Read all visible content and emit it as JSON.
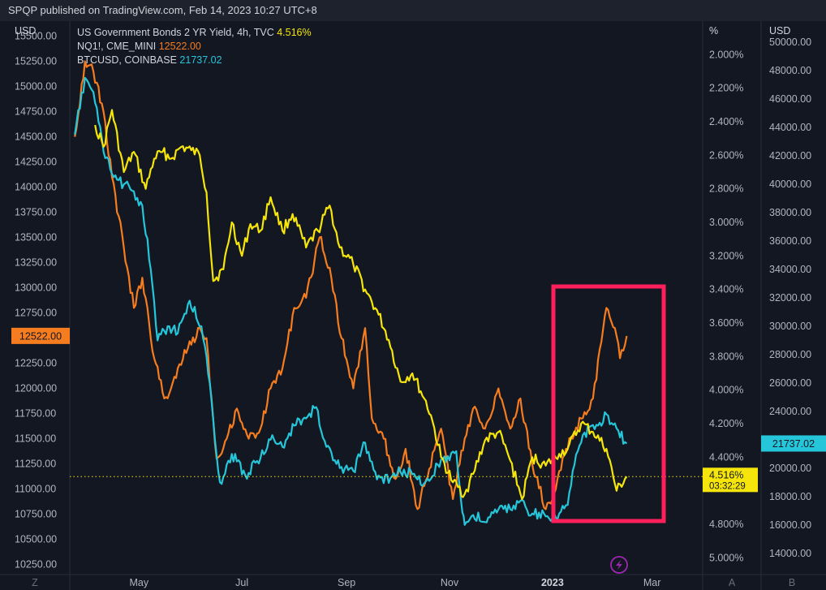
{
  "header": {
    "published": "SPQP published on TradingView.com, Feb 14, 2023 10:27 UTC+8"
  },
  "axes": {
    "left_unit": "USD",
    "mid_unit": "%",
    "right_unit": "USD",
    "left_ticks": [
      "15500.00",
      "15250.00",
      "15000.00",
      "14750.00",
      "14500.00",
      "14250.00",
      "14000.00",
      "13750.00",
      "13500.00",
      "13250.00",
      "13000.00",
      "12750.00",
      "12250.00",
      "12000.00",
      "11750.00",
      "11500.00",
      "11250.00",
      "11000.00",
      "10750.00",
      "10500.00",
      "10250.00"
    ],
    "mid_ticks": [
      "2.000%",
      "2.200%",
      "2.400%",
      "2.600%",
      "2.800%",
      "3.000%",
      "3.200%",
      "3.400%",
      "3.600%",
      "3.800%",
      "4.000%",
      "4.200%",
      "4.400%",
      "4.800%",
      "5.000%"
    ],
    "right_ticks": [
      "50000.00",
      "48000.00",
      "46000.00",
      "44000.00",
      "42000.00",
      "40000.00",
      "38000.00",
      "36000.00",
      "34000.00",
      "32000.00",
      "30000.00",
      "28000.00",
      "26000.00",
      "24000.00",
      "20000.00",
      "18000.00",
      "16000.00",
      "14000.00"
    ],
    "x_ticks": [
      "May",
      "Jul",
      "Sep",
      "Nov",
      "2023",
      "Mar"
    ],
    "left_corner": "Z",
    "right_corner_a": "A",
    "right_corner_b": "B"
  },
  "legend": [
    {
      "label": "US Government Bonds 2 YR Yield, 4h, TVC",
      "value": "4.516%",
      "color": "#f5e50a"
    },
    {
      "label": "NQ1!, CME_MINI",
      "value": "12522.00",
      "color": "#f57c1f"
    },
    {
      "label": "BTCUSD, COINBASE",
      "value": "21737.02",
      "color": "#26c6da"
    }
  ],
  "price_labels": {
    "nq": "12522.00",
    "btc": "21737.02",
    "yield": "4.516%",
    "countdown": "03:32:29"
  },
  "colors": {
    "yield": "#f5e50a",
    "nq": "#f57c1f",
    "btc": "#26c6da",
    "highlight_box": "#ff1f5a",
    "background": "#131722"
  },
  "icons": {
    "replay": "lightning-icon"
  },
  "chart_data": {
    "type": "line",
    "x_range": [
      "2022-03-21",
      "2023-03-31"
    ],
    "series": [
      {
        "name": "US Government Bonds 2 YR Yield, 4h, TVC",
        "axis": "mid",
        "unit": "%",
        "ylim": [
          1.8,
          5.1
        ],
        "points": [
          [
            "2022-04-05",
            2.42
          ],
          [
            "2022-04-10",
            2.55
          ],
          [
            "2022-04-15",
            2.33
          ],
          [
            "2022-04-22",
            2.7
          ],
          [
            "2022-04-28",
            2.58
          ],
          [
            "2022-05-05",
            2.8
          ],
          [
            "2022-05-10",
            2.62
          ],
          [
            "2022-05-15",
            2.58
          ],
          [
            "2022-05-20",
            2.62
          ],
          [
            "2022-05-26",
            2.55
          ],
          [
            "2022-06-01",
            2.57
          ],
          [
            "2022-06-06",
            2.6
          ],
          [
            "2022-06-10",
            2.82
          ],
          [
            "2022-06-14",
            3.35
          ],
          [
            "2022-06-20",
            3.28
          ],
          [
            "2022-06-25",
            3.0
          ],
          [
            "2022-07-01",
            3.2
          ],
          [
            "2022-07-06",
            3.01
          ],
          [
            "2022-07-12",
            3.05
          ],
          [
            "2022-07-18",
            2.85
          ],
          [
            "2022-07-25",
            3.05
          ],
          [
            "2022-07-31",
            2.95
          ],
          [
            "2022-08-08",
            3.15
          ],
          [
            "2022-08-15",
            3.05
          ],
          [
            "2022-08-22",
            2.9
          ],
          [
            "2022-08-28",
            3.15
          ],
          [
            "2022-09-05",
            3.25
          ],
          [
            "2022-09-12",
            3.4
          ],
          [
            "2022-09-20",
            3.55
          ],
          [
            "2022-09-26",
            3.7
          ],
          [
            "2022-10-03",
            3.95
          ],
          [
            "2022-10-10",
            3.9
          ],
          [
            "2022-10-17",
            4.05
          ],
          [
            "2022-10-21",
            4.15
          ],
          [
            "2022-10-27",
            4.4
          ],
          [
            "2022-11-03",
            4.55
          ],
          [
            "2022-11-10",
            4.62
          ],
          [
            "2022-11-15",
            4.5
          ],
          [
            "2022-11-22",
            4.3
          ],
          [
            "2022-11-30",
            4.25
          ],
          [
            "2022-12-07",
            4.42
          ],
          [
            "2022-12-14",
            4.65
          ],
          [
            "2022-12-20",
            4.4
          ],
          [
            "2022-12-28",
            4.45
          ],
          [
            "2023-01-05",
            4.38
          ],
          [
            "2023-01-10",
            4.35
          ],
          [
            "2023-01-18",
            4.2
          ],
          [
            "2023-01-25",
            4.25
          ],
          [
            "2023-02-02",
            4.35
          ],
          [
            "2023-02-08",
            4.6
          ],
          [
            "2023-02-14",
            4.516
          ]
        ]
      },
      {
        "name": "NQ1!, CME_MINI",
        "axis": "left",
        "unit": "USD",
        "ylim": [
          10150,
          15650
        ],
        "points": [
          [
            "2022-03-24",
            14500
          ],
          [
            "2022-03-30",
            15250
          ],
          [
            "2022-04-04",
            15150
          ],
          [
            "2022-04-10",
            14750
          ],
          [
            "2022-04-15",
            14100
          ],
          [
            "2022-04-22",
            13400
          ],
          [
            "2022-04-28",
            12800
          ],
          [
            "2022-05-03",
            13100
          ],
          [
            "2022-05-10",
            12300
          ],
          [
            "2022-05-16",
            11900
          ],
          [
            "2022-05-20",
            12000
          ],
          [
            "2022-05-24",
            12200
          ],
          [
            "2022-05-30",
            12400
          ],
          [
            "2022-06-06",
            12600
          ],
          [
            "2022-06-10",
            12500
          ],
          [
            "2022-06-16",
            11300
          ],
          [
            "2022-06-22",
            11500
          ],
          [
            "2022-06-28",
            11800
          ],
          [
            "2022-07-05",
            11500
          ],
          [
            "2022-07-12",
            11600
          ],
          [
            "2022-07-18",
            12000
          ],
          [
            "2022-07-25",
            12200
          ],
          [
            "2022-08-01",
            12800
          ],
          [
            "2022-08-08",
            12900
          ],
          [
            "2022-08-16",
            13500
          ],
          [
            "2022-08-22",
            13200
          ],
          [
            "2022-08-29",
            12500
          ],
          [
            "2022-09-05",
            12000
          ],
          [
            "2022-09-12",
            12600
          ],
          [
            "2022-09-16",
            11700
          ],
          [
            "2022-09-23",
            11500
          ],
          [
            "2022-09-30",
            11100
          ],
          [
            "2022-10-06",
            11400
          ],
          [
            "2022-10-13",
            10800
          ],
          [
            "2022-10-20",
            11200
          ],
          [
            "2022-10-27",
            11600
          ],
          [
            "2022-11-03",
            10900
          ],
          [
            "2022-11-10",
            11500
          ],
          [
            "2022-11-15",
            11800
          ],
          [
            "2022-11-22",
            11600
          ],
          [
            "2022-11-30",
            12000
          ],
          [
            "2022-12-07",
            11600
          ],
          [
            "2022-12-13",
            11900
          ],
          [
            "2022-12-20",
            11250
          ],
          [
            "2022-12-28",
            10800
          ],
          [
            "2023-01-03",
            11000
          ],
          [
            "2023-01-09",
            11400
          ],
          [
            "2023-01-18",
            11700
          ],
          [
            "2023-01-25",
            11900
          ],
          [
            "2023-02-02",
            12800
          ],
          [
            "2023-02-07",
            12600
          ],
          [
            "2023-02-10",
            12300
          ],
          [
            "2023-02-14",
            12522
          ]
        ]
      },
      {
        "name": "BTCUSD, COINBASE",
        "axis": "right",
        "unit": "USD",
        "ylim": [
          12500,
          51500
        ],
        "points": [
          [
            "2022-03-24",
            43500
          ],
          [
            "2022-03-30",
            47500
          ],
          [
            "2022-04-04",
            46500
          ],
          [
            "2022-04-10",
            42300
          ],
          [
            "2022-04-16",
            40500
          ],
          [
            "2022-04-22",
            40000
          ],
          [
            "2022-04-28",
            39500
          ],
          [
            "2022-05-03",
            38500
          ],
          [
            "2022-05-08",
            34000
          ],
          [
            "2022-05-12",
            29000
          ],
          [
            "2022-05-18",
            30000
          ],
          [
            "2022-05-24",
            29500
          ],
          [
            "2022-05-31",
            31800
          ],
          [
            "2022-06-07",
            30000
          ],
          [
            "2022-06-12",
            26000
          ],
          [
            "2022-06-15",
            22000
          ],
          [
            "2022-06-18",
            19000
          ],
          [
            "2022-06-25",
            21000
          ],
          [
            "2022-07-03",
            19500
          ],
          [
            "2022-07-10",
            20500
          ],
          [
            "2022-07-18",
            22000
          ],
          [
            "2022-07-25",
            21500
          ],
          [
            "2022-08-01",
            23000
          ],
          [
            "2022-08-08",
            23500
          ],
          [
            "2022-08-14",
            24300
          ],
          [
            "2022-08-20",
            21500
          ],
          [
            "2022-08-28",
            20000
          ],
          [
            "2022-09-05",
            19800
          ],
          [
            "2022-09-12",
            21800
          ],
          [
            "2022-09-19",
            19200
          ],
          [
            "2022-09-27",
            19300
          ],
          [
            "2022-10-05",
            19900
          ],
          [
            "2022-10-13",
            19200
          ],
          [
            "2022-10-20",
            19100
          ],
          [
            "2022-10-27",
            20600
          ],
          [
            "2022-11-05",
            21200
          ],
          [
            "2022-11-08",
            17500
          ],
          [
            "2022-11-10",
            16000
          ],
          [
            "2022-11-15",
            16700
          ],
          [
            "2022-11-22",
            16200
          ],
          [
            "2022-11-30",
            17100
          ],
          [
            "2022-12-07",
            17100
          ],
          [
            "2022-12-13",
            17700
          ],
          [
            "2022-12-20",
            16800
          ],
          [
            "2022-12-28",
            16600
          ],
          [
            "2023-01-05",
            16800
          ],
          [
            "2023-01-10",
            17400
          ],
          [
            "2023-01-13",
            19800
          ],
          [
            "2023-01-20",
            22500
          ],
          [
            "2023-01-28",
            23000
          ],
          [
            "2023-02-02",
            23800
          ],
          [
            "2023-02-08",
            22800
          ],
          [
            "2023-02-14",
            21737
          ]
        ]
      }
    ]
  }
}
